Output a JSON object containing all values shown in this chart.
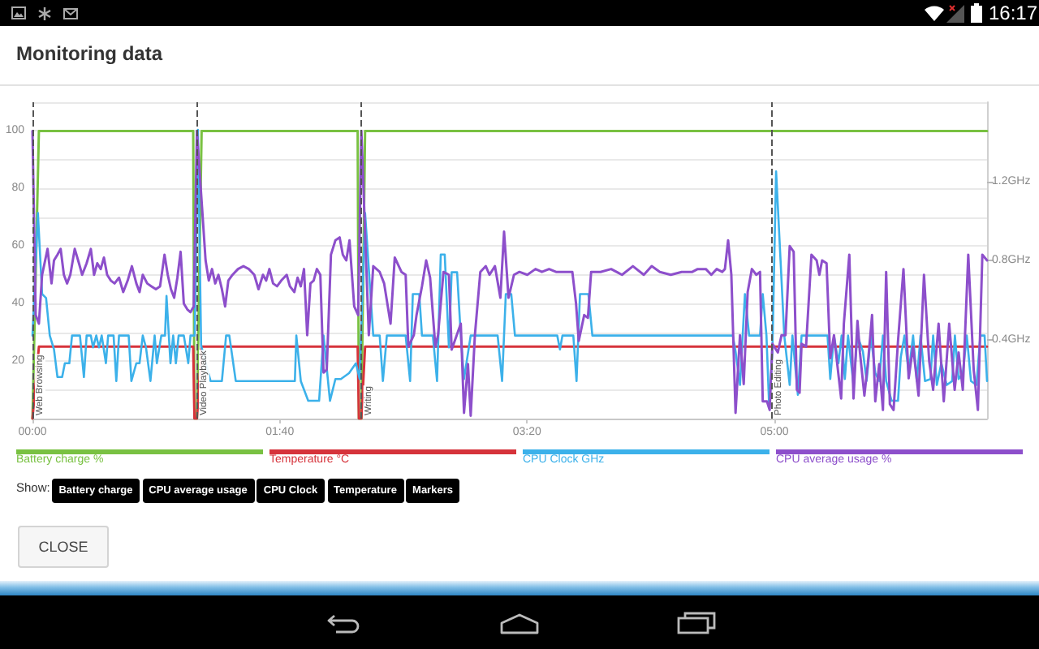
{
  "chart_data": {
    "type": "line",
    "title": "Monitoring data",
    "annotations": [
      "16:17",
      "Show:",
      "Battery charge",
      "CPU average usage",
      "CPU Clock",
      "Temperature",
      "Markers",
      "CLOSE"
    ],
    "xlim": [
      0,
      386
    ],
    "xticks": [
      {
        "value": 0,
        "label": "00:00"
      },
      {
        "value": 100,
        "label": "01:40"
      },
      {
        "value": 200,
        "label": "03:20"
      },
      {
        "value": 300,
        "label": "05:00"
      }
    ],
    "ylim": [
      0,
      110
    ],
    "yticks": [
      {
        "value": 0,
        "label": null
      },
      {
        "value": 10,
        "label": null
      },
      20,
      {
        "value": 30,
        "label": null
      },
      40,
      {
        "value": 50,
        "label": null
      },
      60,
      {
        "value": 70,
        "label": null
      },
      80,
      {
        "value": 90,
        "label": null
      },
      100,
      {
        "value": 110,
        "label": null
      }
    ],
    "y2lim": [
      0,
      1.6
    ],
    "y2ticks": [
      {
        "value": 0.4,
        "label": "0.4GHz"
      },
      {
        "value": 0.8,
        "label": "0.8GHz"
      },
      {
        "value": 1.2,
        "label": "1.2GHz"
      }
    ],
    "grid": "y",
    "legend": "bottom",
    "marker": "none",
    "line_style": "solid",
    "ref_lines": [
      {
        "axis": "x",
        "value": 0,
        "label": "Web Browsing",
        "color": "#555555",
        "line_style": "dashed"
      },
      {
        "axis": "x",
        "value": 66.3,
        "label": "Video Playback",
        "color": "#555555",
        "line_style": "dashed"
      },
      {
        "axis": "x",
        "value": 132.8,
        "label": "Writing",
        "color": "#555555",
        "line_style": "dashed"
      },
      {
        "axis": "x",
        "value": 298.6,
        "label": "Photo Editing",
        "color": "#555555",
        "line_style": "dashed"
      }
    ],
    "series": [
      {
        "name": "Battery charge %",
        "color": "#79c142",
        "x": [
          0,
          2.6,
          65.0,
          65.5,
          66.5,
          68.4,
          131.5,
          132.0,
          133.0,
          134.5,
          386.0
        ],
        "values": [
          0,
          100,
          100,
          0,
          0,
          100,
          100,
          0,
          0,
          100,
          100
        ]
      },
      {
        "name": "Temperature °C",
        "color": "#d6333b",
        "x": [
          0,
          2.6,
          65.0,
          65.5,
          66.5,
          68.4,
          131.5,
          132.0,
          133.0,
          134.5,
          386.0
        ],
        "values": [
          0,
          25,
          25,
          0,
          0,
          25,
          25,
          0,
          0,
          25,
          25
        ]
      },
      {
        "name": "CPU Clock GHz",
        "color": "#3cb1ea",
        "axis": "y2",
        "x": [
          0,
          2.2,
          3.9,
          5.5,
          7.0,
          8.7,
          10.1,
          12.0,
          13.1,
          14.9,
          16.0,
          19.2,
          20.8,
          21.9,
          23.6,
          24.5,
          25.8,
          26.9,
          28.0,
          29.7,
          30.6,
          32.8,
          33.9,
          35.0,
          38.9,
          40.0,
          42.0,
          43.3,
          44.6,
          45.9,
          47.7,
          49.4,
          50.3,
          52.1,
          53.6,
          54.2,
          55.8,
          56.9,
          58.0,
          59.1,
          61.2,
          63.0,
          63.9,
          65.6,
          66.9,
          68.2,
          72.0,
          76.6,
          78.3,
          79.6,
          82.2,
          106.1,
          106.7,
          108.5,
          111.5,
          115.9,
          117.7,
          120.3,
          122.5,
          124.7,
          128.0,
          130.8,
          132.3,
          134.5,
          137.8,
          140.4,
          141.7,
          143.3,
          150.9,
          152.7,
          153.8,
          156.4,
          157.5,
          161.9,
          163.6,
          165.1,
          166.7,
          168.4,
          169.5,
          171.7,
          173.2,
          174.5,
          177.2,
          188.1,
          189.9,
          191.4,
          193.6,
          195.1,
          212.2,
          213.3,
          214.3,
          218.7,
          220.0,
          221.4,
          224.8,
          226.4,
          283.2,
          284.3,
          286.1,
          288.1,
          289.8,
          294.2,
          295.3,
          296.8,
          297.9,
          299.2,
          300.7,
          302.5,
          304.0,
          306.2,
          307.3,
          309.5,
          311.0,
          321.5,
          322.6,
          324.1,
          325.9,
          327.2,
          328.5,
          329.8,
          332.0,
          333.6,
          335.8,
          337.3,
          339.0,
          340.8,
          342.4,
          343.9,
          345.2,
          347.4,
          350.0,
          351.1,
          352.6,
          354.3,
          356.1,
          357.6,
          359.1,
          360.9,
          363.1,
          364.2,
          365.7,
          367.5,
          369.7,
          371.9,
          373.0,
          374.5,
          376.2,
          377.8,
          379.5,
          381.7,
          383.3,
          385.0,
          386.0
        ],
        "values": [
          0.42,
          1.04,
          0.63,
          0.61,
          0.42,
          0.35,
          0.21,
          0.21,
          0.28,
          0.28,
          0.42,
          0.42,
          0.21,
          0.42,
          0.42,
          0.36,
          0.42,
          0.36,
          0.42,
          0.28,
          0.42,
          0.42,
          0.19,
          0.42,
          0.42,
          0.19,
          0.28,
          0.28,
          0.42,
          0.36,
          0.19,
          0.42,
          0.28,
          0.42,
          0.42,
          0.62,
          0.28,
          0.42,
          0.28,
          0.42,
          0.42,
          0.28,
          0.42,
          0.42,
          1.46,
          0.37,
          0.19,
          0.19,
          0.42,
          0.42,
          0.19,
          0.19,
          0.42,
          0.19,
          0.09,
          0.09,
          0.42,
          0.09,
          0.2,
          0.2,
          0.23,
          0.28,
          0.2,
          1.04,
          0.42,
          0.42,
          0.19,
          0.42,
          0.42,
          0.19,
          0.63,
          0.63,
          0.42,
          0.42,
          0.19,
          0.83,
          0.83,
          0.36,
          0.74,
          0.74,
          0.42,
          0.2,
          0.42,
          0.42,
          0.19,
          0.63,
          0.63,
          0.42,
          0.42,
          0.35,
          0.42,
          0.42,
          0.19,
          0.63,
          0.63,
          0.42,
          0.42,
          0.34,
          0.17,
          0.63,
          0.42,
          0.42,
          0.63,
          0.42,
          0.06,
          0.34,
          1.25,
          0.8,
          0.42,
          0.17,
          0.42,
          0.12,
          0.42,
          0.42,
          0.2,
          0.42,
          0.28,
          0.42,
          0.2,
          0.42,
          0.17,
          0.42,
          0.34,
          0.19,
          0.42,
          0.23,
          0.19,
          0.42,
          0.19,
          0.09,
          0.09,
          0.31,
          0.42,
          0.23,
          0.42,
          0.19,
          0.42,
          0.19,
          0.2,
          0.42,
          0.17,
          0.28,
          0.17,
          0.19,
          0.42,
          0.2,
          0.23,
          0.42,
          0.19,
          0.17,
          0.42,
          0.42,
          0.19
        ]
      },
      {
        "name": "CPU average usage %",
        "color": "#8d4fcb",
        "x": [
          0,
          1.3,
          2.6,
          3.9,
          6.1,
          7.7,
          8.7,
          10.1,
          11.4,
          12.7,
          14.0,
          15.3,
          17.1,
          18.8,
          20.1,
          21.9,
          23.6,
          24.9,
          26.2,
          27.6,
          28.9,
          30.2,
          31.7,
          33.2,
          35.0,
          36.7,
          38.5,
          40.2,
          42.0,
          43.3,
          44.6,
          46.4,
          48.1,
          49.9,
          51.6,
          53.4,
          54.7,
          56.0,
          57.3,
          58.6,
          59.9,
          61.2,
          62.6,
          63.9,
          65.2,
          66.5,
          70.0,
          71.3,
          72.6,
          73.9,
          75.2,
          76.6,
          77.9,
          79.2,
          80.9,
          83.1,
          85.3,
          87.5,
          89.7,
          91.4,
          93.2,
          94.5,
          95.8,
          97.3,
          98.9,
          100.6,
          102.8,
          104.1,
          105.9,
          107.2,
          108.5,
          109.8,
          111.1,
          112.4,
          113.7,
          115.0,
          116.4,
          117.7,
          119.0,
          120.7,
          122.5,
          124.2,
          125.5,
          126.9,
          128.2,
          130.1,
          131.7,
          133.0,
          136.0,
          137.8,
          140.4,
          142.2,
          144.8,
          146.5,
          149.2,
          150.9,
          152.0,
          154.2,
          155.3,
          157.5,
          159.2,
          160.8,
          162.9,
          164.0,
          166.2,
          168.4,
          169.5,
          173.2,
          174.5,
          176.1,
          177.2,
          178.9,
          181.1,
          183.3,
          184.8,
          187.0,
          189.2,
          190.7,
          192.5,
          194.7,
          196.9,
          200.1,
          203.4,
          206.0,
          208.9,
          211.7,
          214.3,
          218.3,
          219.8,
          220.9,
          223.1,
          224.6,
          225.9,
          229.7,
          234.0,
          238.4,
          242.8,
          247.2,
          250.4,
          253.7,
          258.1,
          262.5,
          266.8,
          269.0,
          272.3,
          274.5,
          276.7,
          278.9,
          280.0,
          281.3,
          282.6,
          284.3,
          286.1,
          287.6,
          289.2,
          290.9,
          292.7,
          294.2,
          295.3,
          297.0,
          298.1,
          299.2,
          301.4,
          302.9,
          304.5,
          306.2,
          307.8,
          309.1,
          310.2,
          311.0,
          312.8,
          315.0,
          317.1,
          318.2,
          319.3,
          321.1,
          322.6,
          324.1,
          327.0,
          328.1,
          330.3,
          332.0,
          333.6,
          334.6,
          336.4,
          337.9,
          339.5,
          340.8,
          342.4,
          343.9,
          345.2,
          346.7,
          348.2,
          350.0,
          352.2,
          354.3,
          356.1,
          358.3,
          360.5,
          362.6,
          364.2,
          366.4,
          368.5,
          370.7,
          372.9,
          374.5,
          376.2,
          378.4,
          380.6,
          382.3,
          384.1,
          386.0
        ],
        "values": [
          100,
          36,
          33,
          50,
          59,
          47,
          55,
          57,
          59,
          50,
          47,
          50,
          59,
          54,
          50,
          54,
          59,
          50,
          54,
          52,
          56,
          50,
          48,
          47,
          49,
          44,
          48,
          53,
          47,
          44,
          50,
          47,
          46,
          45,
          46,
          57,
          50,
          45,
          42,
          49,
          58,
          40,
          38,
          37,
          39,
          100,
          55,
          48,
          52,
          47,
          50,
          45,
          39,
          48,
          50,
          52,
          53,
          52,
          50,
          45,
          50,
          48,
          52,
          47,
          46,
          48,
          50,
          46,
          44,
          49,
          46,
          52,
          29,
          47,
          48,
          52,
          50,
          16,
          17,
          57,
          62,
          63,
          57,
          55,
          62,
          39,
          36,
          100,
          29,
          53,
          51,
          47,
          33,
          56,
          51,
          50,
          25,
          29,
          36,
          46,
          55,
          49,
          25,
          29,
          51,
          50,
          24,
          33,
          2,
          19,
          1,
          29,
          51,
          53,
          50,
          53,
          42,
          65,
          42,
          50,
          51,
          50,
          52,
          51,
          52,
          51,
          51,
          51,
          40,
          27,
          36,
          35,
          51,
          51,
          52,
          50,
          53,
          50,
          53,
          51,
          50,
          51,
          51,
          52,
          52,
          50,
          52,
          51,
          52,
          62,
          50,
          2,
          29,
          12,
          44,
          52,
          50,
          51,
          6,
          6,
          3,
          26,
          23,
          29,
          29,
          60,
          58,
          10,
          9,
          26,
          25,
          57,
          55,
          50,
          55,
          54,
          21,
          29,
          7,
          33,
          57,
          7,
          34,
          23,
          8,
          20,
          36,
          6,
          19,
          3,
          51,
          5,
          3,
          27,
          52,
          14,
          25,
          8,
          50,
          20,
          10,
          33,
          6,
          33,
          10,
          23,
          10,
          57,
          17,
          3,
          57,
          55
        ]
      }
    ]
  }
}
